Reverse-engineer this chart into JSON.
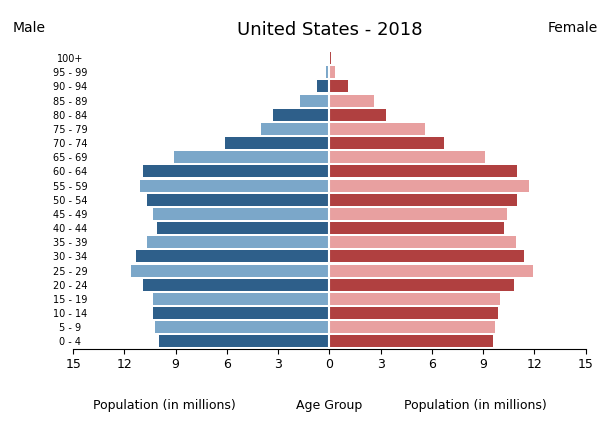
{
  "title": "United States - 2018",
  "age_groups": [
    "0 - 4",
    "5 - 9",
    "10 - 14",
    "15 - 19",
    "20 - 24",
    "25 - 29",
    "30 - 34",
    "35 - 39",
    "40 - 44",
    "45 - 49",
    "50 - 54",
    "55 - 59",
    "60 - 64",
    "65 - 69",
    "70 - 74",
    "75 - 79",
    "80 - 84",
    "85 - 89",
    "90 - 94",
    "95 - 99",
    "100+"
  ],
  "male": [
    10.0,
    10.2,
    10.3,
    10.3,
    10.9,
    11.6,
    11.3,
    10.7,
    10.1,
    10.3,
    10.7,
    11.1,
    10.9,
    9.1,
    6.1,
    4.0,
    3.3,
    1.7,
    0.7,
    0.2,
    0.05
  ],
  "female": [
    9.6,
    9.7,
    9.9,
    10.0,
    10.8,
    11.9,
    11.4,
    10.9,
    10.2,
    10.4,
    11.0,
    11.7,
    11.0,
    9.1,
    6.7,
    5.6,
    3.3,
    2.6,
    1.1,
    0.35,
    0.08
  ],
  "male_dark": "#2e5f8a",
  "male_light": "#7ba7c9",
  "female_dark": "#b04040",
  "female_light": "#e8a0a0",
  "xlim": 15,
  "xlabel_left": "Population (in millions)",
  "xlabel_center": "Age Group",
  "xlabel_right": "Population (in millions)",
  "label_male": "Male",
  "label_female": "Female",
  "background_color": "#ffffff"
}
